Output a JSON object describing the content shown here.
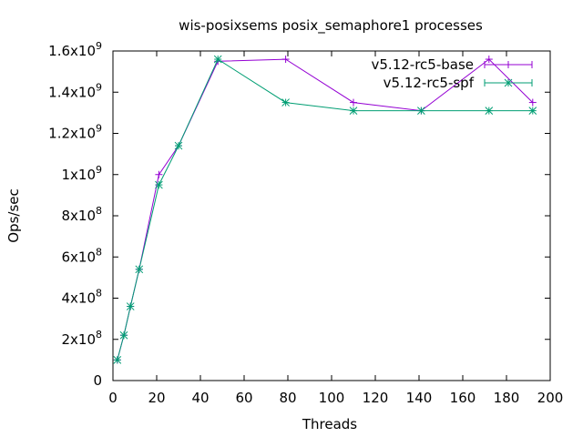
{
  "chart_data": {
    "type": "line",
    "title": "wis-posixsems posix_semaphore1 processes",
    "xlabel": "Threads",
    "ylabel": "Ops/sec",
    "xlim": [
      0,
      200
    ],
    "ylim": [
      0,
      1600000000
    ],
    "x_ticks": [
      0,
      20,
      40,
      60,
      80,
      100,
      120,
      140,
      160,
      180,
      200
    ],
    "y_ticks": [
      {
        "value": 0,
        "mantissa": "0",
        "exp": ""
      },
      {
        "value": 200000000,
        "mantissa": "2x10",
        "exp": "8"
      },
      {
        "value": 400000000,
        "mantissa": "4x10",
        "exp": "8"
      },
      {
        "value": 600000000,
        "mantissa": "6x10",
        "exp": "8"
      },
      {
        "value": 800000000,
        "mantissa": "8x10",
        "exp": "8"
      },
      {
        "value": 1000000000,
        "mantissa": "1x10",
        "exp": "9"
      },
      {
        "value": 1200000000,
        "mantissa": "1.2x10",
        "exp": "9"
      },
      {
        "value": 1400000000,
        "mantissa": "1.4x10",
        "exp": "9"
      },
      {
        "value": 1600000000,
        "mantissa": "1.6x10",
        "exp": "9"
      }
    ],
    "grid": false,
    "legend_position": "top-right",
    "series": [
      {
        "name": "v5.12-rc5-base",
        "color": "#9400d3",
        "marker": "plus",
        "x": [
          2,
          5,
          8,
          12,
          21,
          30,
          48,
          79,
          110,
          141,
          172,
          192
        ],
        "y": [
          100000000,
          220000000,
          360000000,
          540000000,
          1000000000,
          1140000000,
          1550000000,
          1560000000,
          1350000000,
          1310000000,
          1560000000,
          1350000000
        ]
      },
      {
        "name": "v5.12-rc5-spf",
        "color": "#009e73",
        "marker": "star",
        "x": [
          2,
          5,
          8,
          12,
          21,
          30,
          48,
          79,
          110,
          141,
          172,
          192
        ],
        "y": [
          100000000,
          220000000,
          360000000,
          540000000,
          950000000,
          1140000000,
          1560000000,
          1350000000,
          1310000000,
          1310000000,
          1310000000,
          1310000000
        ]
      }
    ]
  }
}
